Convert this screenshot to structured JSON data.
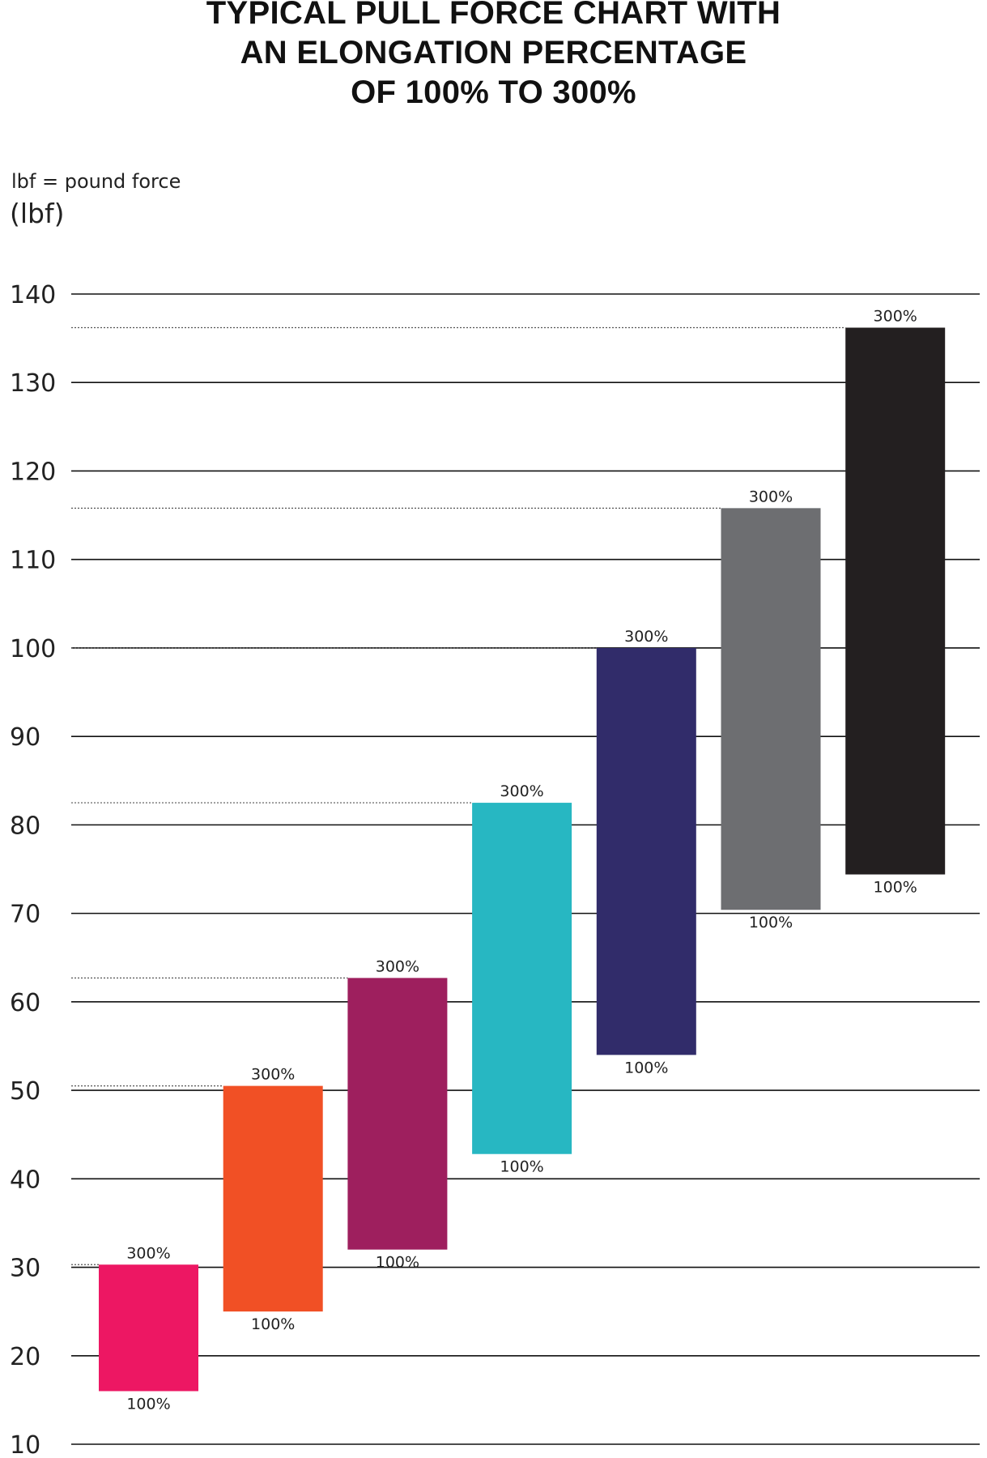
{
  "chart_data": {
    "type": "bar",
    "title_lines": [
      "TYPICAL PULL FORCE CHART WITH",
      "AN ELONGATION PERCENTAGE",
      "OF 100% TO 300%"
    ],
    "note": "lbf = pound force",
    "ylabel": "(lbf)",
    "ylim": [
      10,
      140
    ],
    "yticks": [
      10,
      20,
      30,
      40,
      50,
      60,
      70,
      80,
      90,
      100,
      110,
      120,
      130,
      140
    ],
    "grid": true,
    "low_label": "100%",
    "high_label": "300%",
    "bars": [
      {
        "low": 16,
        "high": 30.3,
        "color": "#ed1763"
      },
      {
        "low": 25,
        "high": 50.5,
        "color": "#f15025"
      },
      {
        "low": 32,
        "high": 62.7,
        "color": "#9e1f5e"
      },
      {
        "low": 42.8,
        "high": 82.5,
        "color": "#27b7c2"
      },
      {
        "low": 54,
        "high": 100,
        "color": "#312c6a"
      },
      {
        "low": 70.4,
        "high": 115.8,
        "color": "#6d6e71"
      },
      {
        "low": 74.4,
        "high": 136.2,
        "color": "#231f20"
      }
    ]
  }
}
